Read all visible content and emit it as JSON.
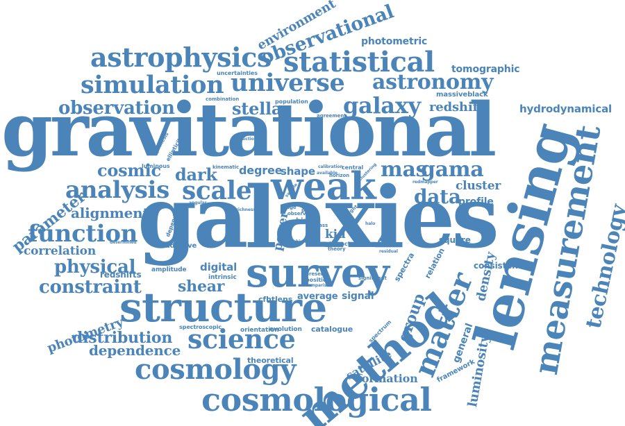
{
  "colors": {
    "word": "#4a84b8",
    "background": "#ffffff"
  },
  "words": {
    "galaxies": "galaxies",
    "gravitational": "gravitational",
    "lensing": "lensing",
    "method": "method",
    "structure": "structure",
    "survey": "survey",
    "weak": "weak",
    "measurement": "measurement",
    "cosmological": "cosmological",
    "cosmology": "cosmology",
    "science": "science",
    "matter": "matter",
    "technology": "technology",
    "statistical": "statistical",
    "astrophysics": "astrophysics",
    "simulation": "simulation",
    "universe": "universe",
    "astronomy": "astronomy",
    "observational": "observational",
    "environment": "environment",
    "photometric": "photometric",
    "tomographic": "tomographic",
    "massiveblack": "massiveblack",
    "redshift": "redshift",
    "hydrodynamical": "hydrodynamical",
    "galaxy": "galaxy",
    "observation": "observation",
    "stellar": "stellar",
    "cosmic": "cosmic",
    "mas": "mas",
    "gama": "gama",
    "analysis": "analysis",
    "scale": "scale",
    "dark": "dark",
    "degree": "degree",
    "shape": "shape",
    "cluster": "cluster",
    "data": "data",
    "profile": "profile",
    "parameter": "parameter",
    "alignment": "alignment",
    "function": "function",
    "correlation": "correlation",
    "physical": "physical",
    "redshifts": "redshifts",
    "constraint": "constraint",
    "shear": "shear",
    "digital": "digital",
    "photometry": "photometry",
    "distribution": "distribution",
    "dependence": "dependence",
    "cfhtlens": "cfhtlens",
    "average": "average",
    "signal": "signal",
    "group": "group",
    "density": "density",
    "relation": "relation",
    "consistent": "consistent",
    "luminosity": "luminosity",
    "general": "general",
    "satellite": "satellite",
    "formation": "formation",
    "framework": "framework",
    "spectra": "spectra",
    "kid": "kid",
    "power": "power",
    "result": "result",
    "square": "square",
    "catalogue": "catalogue",
    "evolution": "evolution",
    "orientation": "orientation",
    "theoretical": "theoretical",
    "spectroscopic": "spectroscopic",
    "intrinsic": "intrinsic",
    "amplitude": "amplitude",
    "additive": "additive",
    "uncertainties": "uncertainties",
    "combination": "combination",
    "population": "population",
    "agreement": "agreement",
    "prediction": "prediction",
    "synthesis": "synthesis",
    "ellipticity": "ellipticity",
    "luminous": "luminous",
    "kinematic": "kinematic",
    "central": "central",
    "horizon": "horizon",
    "redmapper": "redmapper",
    "determined": "determined",
    "angular": "angular",
    "richness": "richness",
    "dependent": "dependent",
    "impact": "impact",
    "theory": "theory",
    "position": "position",
    "present": "present",
    "comparison": "comparison",
    "significant": "significant",
    "bias": "bias",
    "range": "range",
    "probe": "probe",
    "spectrum": "spectrum",
    "model": "model",
    "mass": "mass",
    "calibration": "calibration",
    "bright": "bright",
    "higher": "higher",
    "available": "available",
    "clustering": "clustering",
    "observed": "observed",
    "sample": "sample",
    "band": "band",
    "residual": "residual",
    "halo": "halo"
  }
}
